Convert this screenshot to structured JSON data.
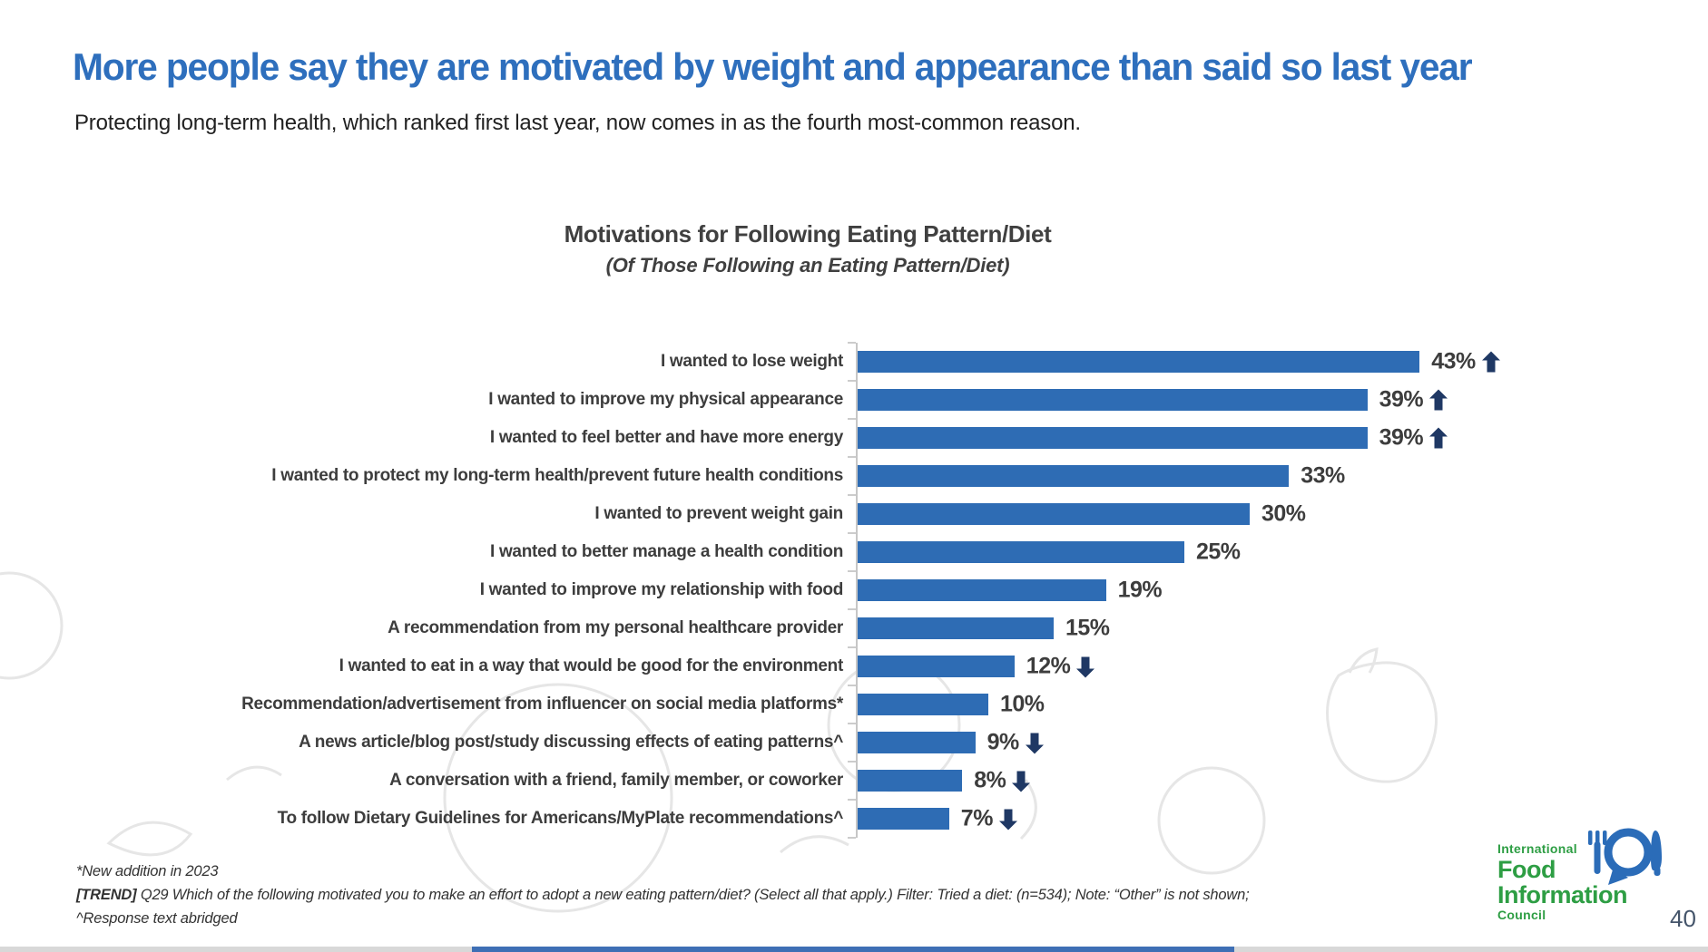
{
  "colors": {
    "accent_blue": "#2E6FBD",
    "bar": "#2E6CB4",
    "arrow": "#1F3864",
    "logo_green": "#2E9E44",
    "logo_blue": "#2B6CB8",
    "page_number": "#44546A",
    "bottom_gray": "#D8D8D8",
    "bottom_blue": "#3E6FB5"
  },
  "slide": {
    "title": "More people say they are motivated by weight and appearance than said so last year",
    "subtitle": "Protecting long-term health, which ranked first last year, now comes in as the fourth most-common reason.",
    "page_number": "40"
  },
  "chart_data": {
    "type": "bar",
    "orientation": "horizontal",
    "title": "Motivations for Following Eating Pattern/Diet",
    "subtitle": "(Of Those Following an Eating Pattern/Diet)",
    "xlim": [
      0,
      45
    ],
    "grid": false,
    "legend": "none",
    "categories": [
      "I wanted to lose weight",
      "I wanted to improve my physical appearance",
      "I wanted to feel better and have more energy",
      "I wanted to protect my long-term health/prevent future health conditions",
      "I wanted to prevent weight gain",
      "I wanted to better manage a health condition",
      "I wanted to improve my relationship with food",
      "A recommendation from my personal healthcare provider",
      "I wanted to eat in a way that would be good for the environment",
      "Recommendation/advertisement from influencer on social media platforms*",
      "A news article/blog post/study discussing effects of eating patterns^",
      "A conversation with a friend, family member, or coworker",
      "To follow Dietary Guidelines for Americans/MyPlate recommendations^"
    ],
    "values": [
      43,
      39,
      39,
      33,
      30,
      25,
      19,
      15,
      12,
      10,
      9,
      8,
      7
    ],
    "value_labels": [
      "43%",
      "39%",
      "39%",
      "33%",
      "30%",
      "25%",
      "19%",
      "15%",
      "12%",
      "10%",
      "9%",
      "8%",
      "7%"
    ],
    "trends": [
      "up",
      "up",
      "up",
      "none",
      "none",
      "none",
      "none",
      "none",
      "down",
      "none",
      "down",
      "down",
      "down"
    ]
  },
  "footnotes": {
    "line1": "*New addition in 2023",
    "trend_tag": "[TREND]",
    "line2": "Q29 Which of the following motivated you to make an effort to adopt a new eating pattern/diet? (Select all that apply.) Filter: Tried a diet: (n=534); Note: “Other” is not shown;",
    "line3": "^Response text abridged"
  },
  "logo": {
    "line1": "International",
    "line2": "Food",
    "line3": "Information",
    "line4": "Council"
  }
}
